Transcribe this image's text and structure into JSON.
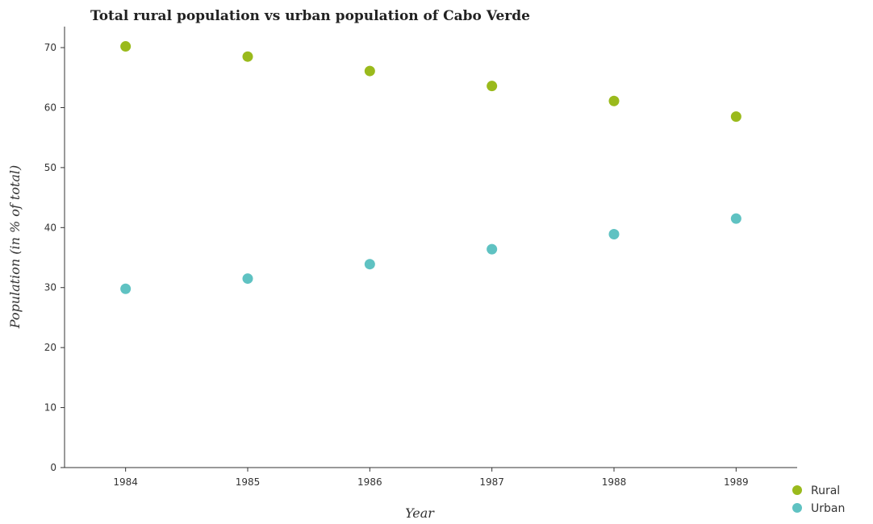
{
  "colors": {
    "rural": "#9aba1c",
    "urban": "#5fc2c2",
    "axis": "#333333",
    "grid": "#e8e8e8"
  },
  "chart_data": {
    "type": "scatter",
    "title": "Total rural population vs urban population of Cabo Verde",
    "xlabel": "Year",
    "ylabel": "Population (in % of total)",
    "categories": [
      "1984",
      "1985",
      "1986",
      "1987",
      "1988",
      "1989"
    ],
    "ylim": [
      0,
      73.5
    ],
    "yticks": [
      "0",
      "10",
      "20",
      "30",
      "40",
      "50",
      "60",
      "70"
    ],
    "legend_position": "bottom-right",
    "series": [
      {
        "name": "Rural",
        "values": [
          70.2,
          68.5,
          66.1,
          63.6,
          61.1,
          58.5
        ]
      },
      {
        "name": "Urban",
        "values": [
          29.8,
          31.5,
          33.9,
          36.4,
          38.9,
          41.5
        ]
      }
    ]
  }
}
